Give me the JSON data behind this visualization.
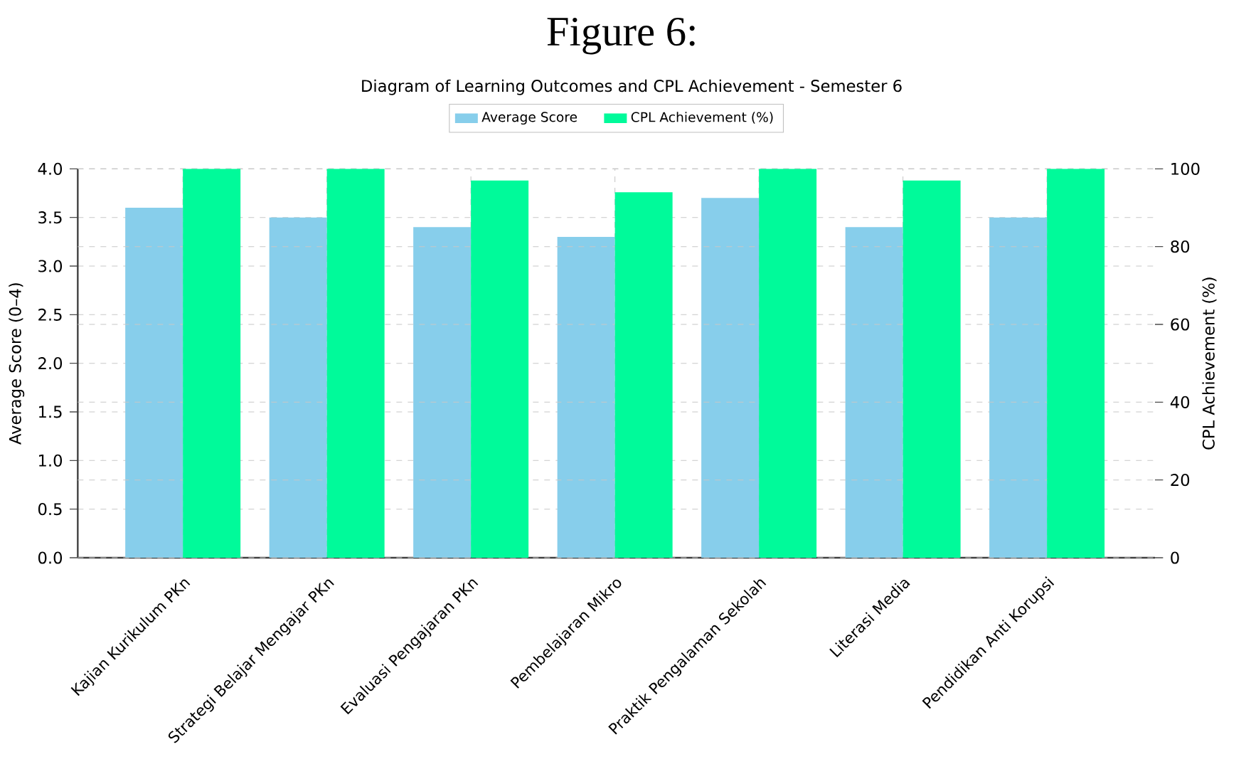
{
  "chart_data": {
    "type": "bar",
    "title": "Figure 6:",
    "subtitle": "Diagram of Learning Outcomes and CPL Achievement - Semester 6",
    "categories": [
      "Kajian Kurikulum PKn",
      "Strategi Belajar Mengajar PKn",
      "Evaluasi Pengajaran PKn",
      "Pembelajaran Mikro",
      "Praktik Pengalaman Sekolah",
      "Literasi Media",
      "Pendidikan Anti Korupsi"
    ],
    "series": [
      {
        "name": "Average Score",
        "color": "#87ceeb",
        "values": [
          3.6,
          3.5,
          3.4,
          3.3,
          3.7,
          3.4,
          3.5
        ]
      },
      {
        "name": "CPL Achievement (%)",
        "color": "#00fa9a",
        "axis": "y2",
        "values": [
          100,
          100,
          97,
          94,
          100,
          97,
          100
        ]
      }
    ],
    "ylabel": "Average Score (0–4)",
    "y2label": "CPL Achievement (%)",
    "ylim": [
      0,
      4
    ],
    "yticks": [
      {
        "value": 0,
        "label": "0.0"
      },
      {
        "value": 0.5,
        "label": "0.5"
      },
      {
        "value": 1,
        "label": "1.0"
      },
      {
        "value": 1.5,
        "label": "1.5"
      },
      {
        "value": 2,
        "label": "2.0"
      },
      {
        "value": 2.5,
        "label": "2.5"
      },
      {
        "value": 3,
        "label": "3.0"
      },
      {
        "value": 3.5,
        "label": "3.5"
      },
      {
        "value": 4,
        "label": "4.0"
      }
    ],
    "y2lim": [
      0,
      100
    ],
    "y2ticks": [
      0,
      20,
      40,
      60,
      80,
      100
    ],
    "grid": true,
    "legend": "top"
  }
}
